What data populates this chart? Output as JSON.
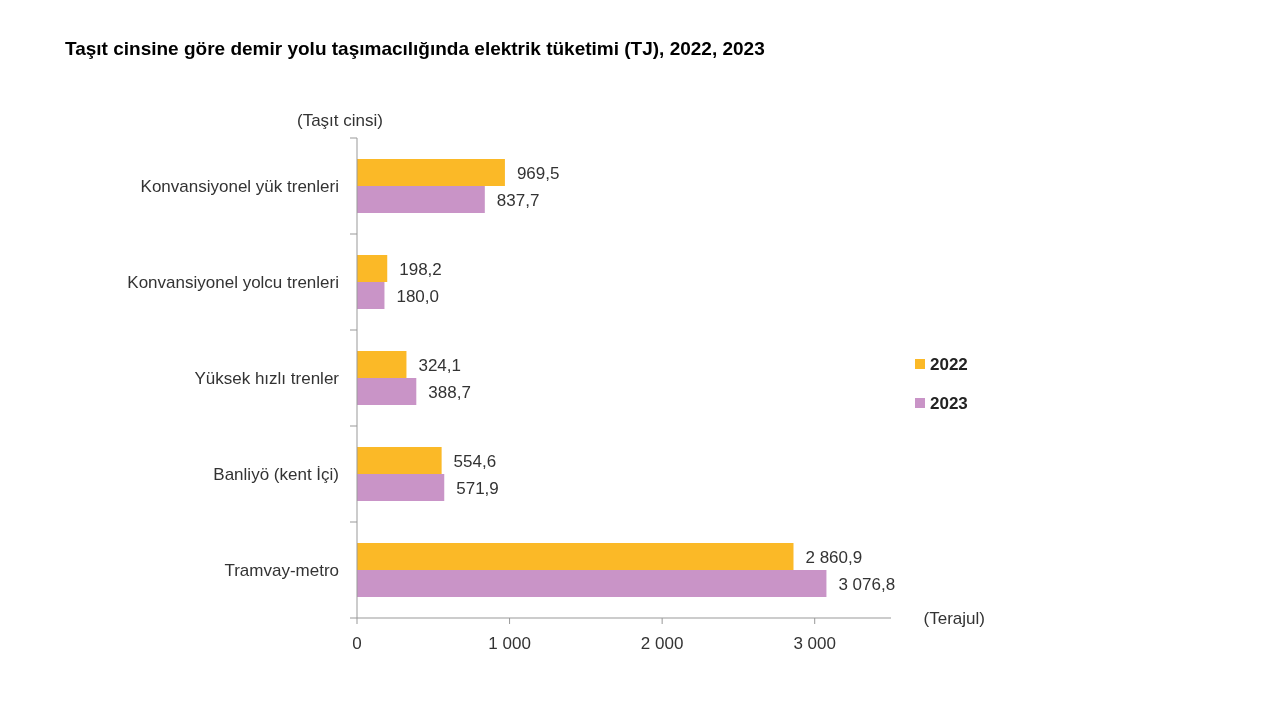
{
  "chart_data": {
    "type": "bar",
    "orientation": "horizontal",
    "title": "Taşıt cinsine göre demir yolu taşımacılığında elektrik tüketimi (TJ), 2022, 2023",
    "xlabel": "(Terajul)",
    "ylabel": "(Taşıt cinsi)",
    "categories": [
      "Konvansiyonel yük trenleri",
      "Konvansiyonel yolcu trenleri",
      "Yüksek hızlı trenler",
      "Banliyö (kent İçi)",
      "Tramvay-metro"
    ],
    "series": [
      {
        "name": "2022",
        "color": "#fbb927",
        "values": [
          969.5,
          198.2,
          324.1,
          554.6,
          2860.9
        ],
        "value_labels": [
          "969,5",
          "198,2",
          "324,1",
          "554,6",
          "2 860,9"
        ]
      },
      {
        "name": "2023",
        "color": "#c994c7",
        "values": [
          837.7,
          180.0,
          388.7,
          571.9,
          3076.8
        ],
        "value_labels": [
          "837,7",
          "180,0",
          "388,7",
          "571,9",
          "3 076,8"
        ]
      }
    ],
    "xlim": [
      0,
      3500
    ],
    "xticks": [
      0,
      {
        "value": 1000,
        "label": "1 000"
      },
      {
        "value": 2000,
        "label": "2 000"
      },
      {
        "value": 3000,
        "label": "3 000"
      }
    ],
    "legend": "right",
    "grid": false
  }
}
